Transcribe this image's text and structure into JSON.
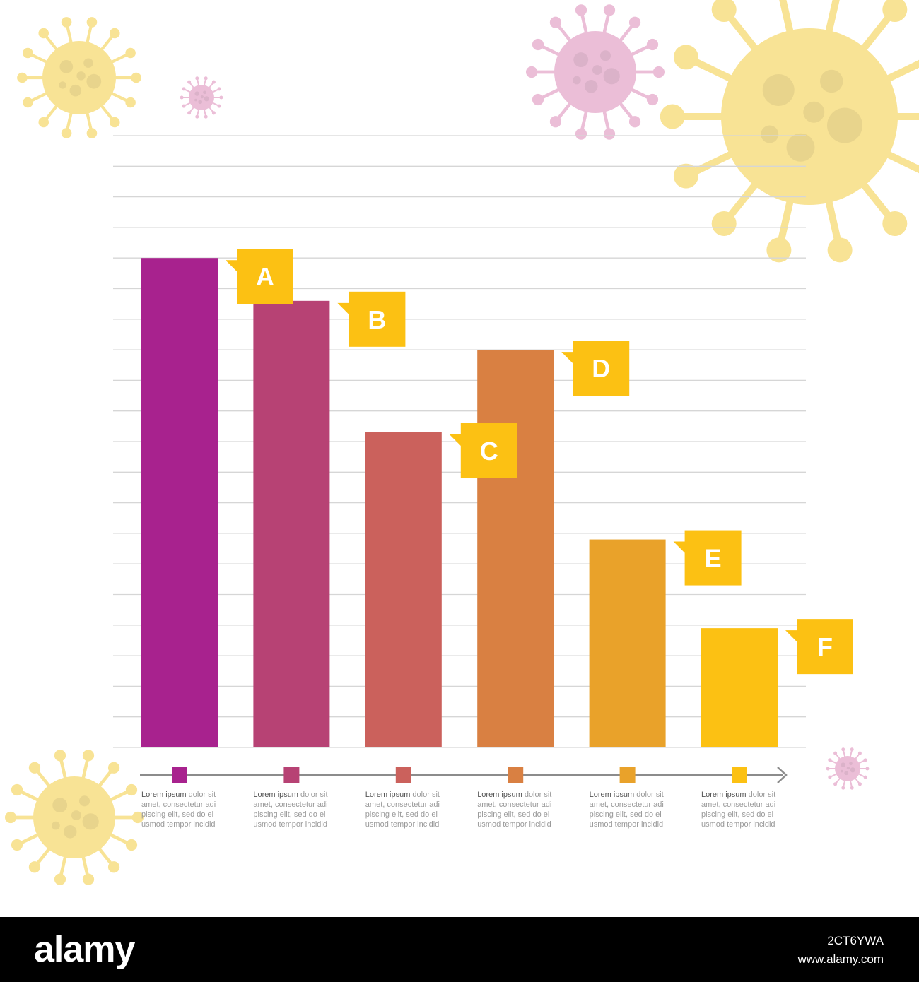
{
  "chart_data": {
    "type": "bar",
    "categories": [
      "A",
      "B",
      "C",
      "D",
      "E",
      "F"
    ],
    "values": [
      16,
      14.6,
      10.3,
      13,
      6.8,
      3.9
    ],
    "ylim": [
      0,
      20
    ],
    "grid": true,
    "gridline_count": 20,
    "bar_colors": [
      "#a8228e",
      "#b74274",
      "#cb615c",
      "#d98042",
      "#e9a22a",
      "#fcc113"
    ],
    "label_box_color": "#fcc113",
    "axis_color": "#8c8c8c",
    "legend_texts": [
      {
        "lead": "Lorem ipsum",
        "rest": "dolor sit amet, consectetur adi piscing elit, sed do ei usmod tempor incidid"
      },
      {
        "lead": "Lorem ipsum",
        "rest": "dolor sit amet, consectetur adi piscing elit, sed do ei usmod tempor incidid"
      },
      {
        "lead": "Lorem ipsum",
        "rest": "dolor sit amet, consectetur adi piscing elit, sed do ei usmod tempor incidid"
      },
      {
        "lead": "Lorem ipsum",
        "rest": "dolor sit amet, consectetur adi piscing elit, sed do ei usmod tempor incidid"
      },
      {
        "lead": "Lorem ipsum",
        "rest": "dolor sit amet, consectetur adi piscing elit, sed do ei usmod tempor incidid"
      },
      {
        "lead": "Lorem ipsum",
        "rest": "dolor sit amet, consectetur adi piscing elit, sed do ei usmod tempor incidid"
      }
    ]
  },
  "decorations": {
    "virus_colors": [
      "#f8e08a",
      "#e9b7d3"
    ],
    "virus_icon": "coronavirus-icon"
  },
  "footer": {
    "logo": "alamy",
    "image_id": "2CT6YWA",
    "site": "www.alamy.com",
    "background": "#000000"
  }
}
